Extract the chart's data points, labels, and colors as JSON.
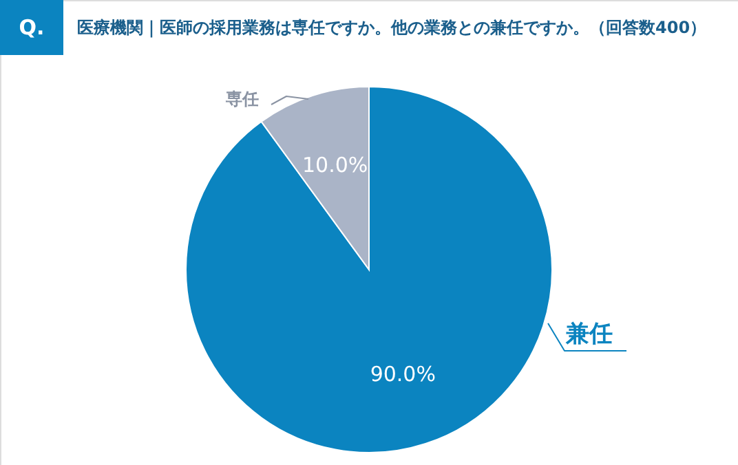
{
  "chart_data": {
    "type": "pie",
    "title": "医療機関｜医師の採用業務は専任ですか。他の業務との兼任ですか。（回答数400）",
    "annotations": [
      "Q."
    ],
    "categories": [
      "兼任",
      "専任"
    ],
    "values": [
      90,
      10
    ],
    "colors": [
      "#0b84c0",
      "#aab4c7"
    ],
    "value_labels": [
      "90.0%",
      "10.0%"
    ]
  }
}
